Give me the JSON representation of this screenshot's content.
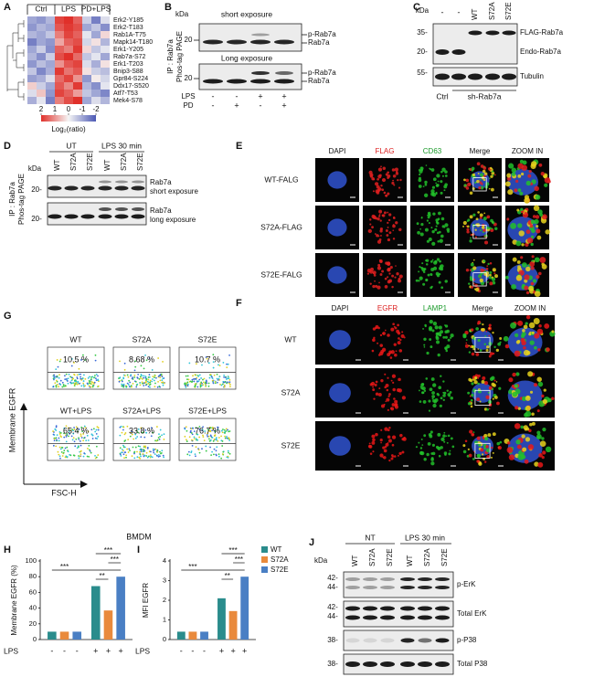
{
  "panels": {
    "A": {
      "letter": "A"
    },
    "B": {
      "letter": "B",
      "kda": "kDa",
      "short": "short exposure",
      "long": "Long exposure",
      "mw": [
        "20",
        "20"
      ],
      "band_labels": [
        "p-Rab7a",
        "Rab7a",
        "p-Rab7a",
        "Rab7a"
      ],
      "ip": "IP : Rab7a",
      "phos": "Phos-tag PAGE",
      "rows": [
        {
          "label": "LPS",
          "signs": [
            "-",
            "-",
            "+",
            "+"
          ]
        },
        {
          "label": "PD",
          "signs": [
            "-",
            "+",
            "-",
            "+"
          ]
        }
      ]
    },
    "C": {
      "letter": "C",
      "kda": "kDa",
      "lanes": [
        "-",
        "-",
        "WT",
        "S72A",
        "S72E"
      ],
      "mw": [
        "35-",
        "20-",
        "55-"
      ],
      "band_labels": [
        "FLAG-Rab7a",
        "Endo-Rab7a",
        "Tubulin"
      ],
      "groups": [
        "Ctrl",
        "sh-Rab7a"
      ]
    },
    "D": {
      "letter": "D",
      "groups": [
        "UT",
        "LPS  30 min"
      ],
      "lanes": [
        "WT",
        "S72A",
        "S72E",
        "WT",
        "S72A",
        "S72E"
      ],
      "kda": "kDa",
      "mw": [
        "20-",
        "20-"
      ],
      "band_labels": [
        [
          "Rab7a",
          "short exposure"
        ],
        [
          "Rab7a",
          "long exposure"
        ]
      ],
      "ip": "IP : Rab7a",
      "phos": "Phos-tag PAGE"
    },
    "E": {
      "letter": "E",
      "columns": [
        "DAPI",
        "FLAG",
        "CD63",
        "Merge",
        "ZOOM IN"
      ],
      "rows": [
        "WT-FALG",
        "S72A-FLAG",
        "S72E-FALG"
      ]
    },
    "F": {
      "letter": "F",
      "columns": [
        "DAPI",
        "EGFR",
        "LAMP1",
        "Merge",
        "ZOOM IN"
      ],
      "rows": [
        "WT",
        "S72A",
        "S72E"
      ]
    },
    "G": {
      "letter": "G",
      "plots": [
        {
          "label": "WT",
          "percent": "10.5 %"
        },
        {
          "label": "S72A",
          "percent": "8.68 %"
        },
        {
          "label": "S72E",
          "percent": "10.7 %"
        },
        {
          "label": "WT+LPS",
          "percent": "65.4 %"
        },
        {
          "label": "S72A+LPS",
          "percent": "33.8 %"
        },
        {
          "label": "S72E+LPS",
          "percent": "76.7 %"
        }
      ],
      "ylabel": "Membrane EGFR",
      "xlabel": "FSC-H"
    },
    "H": {
      "letter": "H"
    },
    "I": {
      "letter": "I"
    },
    "bmdm": "BMDM",
    "J": {
      "letter": "J",
      "groups": [
        "NT",
        "LPS  30 min"
      ],
      "lanes": [
        "WT",
        "S72A",
        "S72E",
        "WT",
        "S72A",
        "S72E"
      ],
      "kda": "kDa",
      "mw": [
        "42-",
        "44-",
        "42-",
        "44-",
        "38-",
        "38-"
      ],
      "band_labels": [
        "p-ErK",
        "Total ErK",
        "p-P38",
        "Total P38"
      ]
    }
  },
  "chart_data": [
    {
      "type": "heatmap",
      "column_groups": [
        "Ctrl",
        "LPS",
        "PD+LPS"
      ],
      "rows": [
        "Erk2-Y185",
        "Erk2-T183",
        "Rab1A-T75",
        "Mapk14-T180",
        "Erk1-Y205",
        "Rab7a-S72",
        "Erk1-T203",
        "Bnip3-S88",
        "Gpr84-S224",
        "Ddx17-S520",
        "Atf7-T53",
        "Mek4-S78"
      ],
      "values": [
        [
          -1,
          -1.2,
          -0.8,
          1.8,
          2,
          1.5,
          -0.5,
          -1.5,
          -0.3
        ],
        [
          -1.2,
          -0.8,
          -1,
          1.6,
          1.9,
          1.7,
          -1,
          -0.6,
          -1.3
        ],
        [
          -0.8,
          -1,
          -0.6,
          1.2,
          1.8,
          1.5,
          -0.2,
          -1,
          0.3
        ],
        [
          -1.5,
          -1,
          -1.2,
          0.8,
          1.5,
          1.7,
          -0.4,
          0.2,
          -0.8
        ],
        [
          -1,
          -0.5,
          -1.3,
          1.5,
          1.2,
          1.9,
          0.3,
          -0.6,
          -0.2
        ],
        [
          -0.8,
          -1.3,
          -0.5,
          1.7,
          2,
          1.4,
          -0.6,
          -0.2,
          -1
        ],
        [
          -1.2,
          -0.7,
          -1,
          1,
          1.6,
          1.8,
          -0.3,
          -0.9,
          0.2
        ],
        [
          -0.6,
          -1.4,
          -0.9,
          1.9,
          1.3,
          1.6,
          0.2,
          -0.5,
          -0.7
        ],
        [
          -1.1,
          -0.9,
          -0.3,
          1.4,
          1.8,
          1,
          -1.2,
          0.1,
          -0.4
        ],
        [
          0.4,
          -0.5,
          -1,
          1.6,
          1.1,
          1.9,
          -0.8,
          -1.3,
          -0.2
        ],
        [
          -0.3,
          0.5,
          -1.2,
          1.8,
          1.5,
          0.9,
          -0.6,
          -1,
          -1.4
        ],
        [
          -0.9,
          -0.2,
          -1.5,
          1.2,
          1.7,
          2,
          -1,
          -0.3,
          -0.8
        ]
      ],
      "clim": [
        -2,
        2
      ],
      "colorbar_ticks": [
        2,
        1,
        0,
        -1,
        -2
      ],
      "colorbar_label": "Log₂(ratio)"
    },
    {
      "type": "bar",
      "x_label": "LPS",
      "categories": [
        "-",
        "+"
      ],
      "ylabel": "Membrane EGFR (%)",
      "ylim": [
        0,
        100
      ],
      "yticks": [
        0,
        20,
        40,
        60,
        80,
        100
      ],
      "series": [
        {
          "name": "WT",
          "color": "#2a8c8c",
          "values": [
            10,
            68
          ]
        },
        {
          "name": "S72A",
          "color": "#e98a3c",
          "values": [
            10,
            37
          ]
        },
        {
          "name": "S72E",
          "color": "#4a7fc4",
          "values": [
            10,
            80
          ]
        }
      ],
      "annotations": [
        "***",
        "***",
        "***",
        "**"
      ]
    },
    {
      "type": "bar",
      "x_label": "LPS",
      "categories": [
        "-",
        "+"
      ],
      "ylabel": "MFI EGFR",
      "ylim": [
        0,
        4
      ],
      "yticks": [
        0,
        1,
        2,
        3,
        4
      ],
      "legend": "right",
      "series": [
        {
          "name": "WT",
          "color": "#2a8c8c",
          "values": [
            0.4,
            2.1
          ]
        },
        {
          "name": "S72A",
          "color": "#e98a3c",
          "values": [
            0.4,
            1.45
          ]
        },
        {
          "name": "S72E",
          "color": "#4a7fc4",
          "values": [
            0.4,
            3.2
          ]
        }
      ],
      "annotations": [
        "***",
        "***",
        "***",
        "**"
      ]
    }
  ]
}
